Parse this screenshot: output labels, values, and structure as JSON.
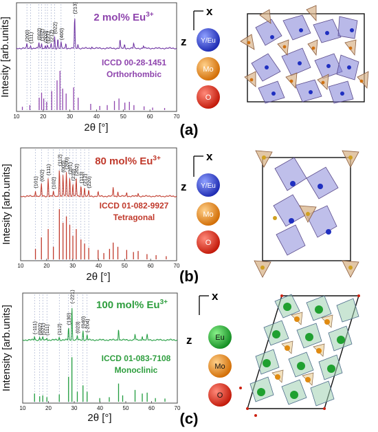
{
  "panels": [
    {
      "letter": "(a)",
      "conc_text": "2 mol% Eu",
      "conc_sup": "3+",
      "icdd": "ICCD 00-28-1451",
      "system": "Orthorhombic",
      "ion1": "Y/Eu",
      "ion2": "Mo",
      "ion3": "O",
      "axis_x": "x",
      "axis_z": "z"
    },
    {
      "letter": "(b)",
      "conc_text": "80 mol% Eu",
      "conc_sup": "3+",
      "icdd": "ICCD 01-082-9927",
      "system": "Tetragonal",
      "ion1": "Y/Eu",
      "ion2": "Mo",
      "ion3": "O",
      "axis_x": "x",
      "axis_z": "z"
    },
    {
      "letter": "(c)",
      "conc_text": "100 mol% Eu",
      "conc_sup": "3+",
      "icdd": "ICCD 01-083-7108",
      "system": "Monoclinic",
      "ion1": "Eu",
      "ion2": "Mo",
      "ion3": "O",
      "axis_x": "x",
      "axis_z": "z"
    }
  ],
  "colors": {
    "a": "#6b2fa0",
    "b": "#c0392b",
    "c": "#1e9b3c",
    "a_label": "#8e44ad",
    "b_label": "#c0392b",
    "c_label": "#2e9e3e",
    "ion_yeu": "#2435c8",
    "ion_eu": "#1e9b2e",
    "ion_mo": "#e07b10",
    "ion_o": "#d82010"
  },
  "chart_data": [
    {
      "type": "line",
      "xlabel": "2θ [°]",
      "ylabel": "Intesity [arb.units]",
      "xlim": [
        10,
        70
      ],
      "xticks": [
        10,
        20,
        30,
        40,
        50,
        60,
        70
      ],
      "pattern_peaks": [
        {
          "x": 13.9,
          "h": 0.1
        },
        {
          "x": 15.3,
          "h": 0.06
        },
        {
          "x": 18.4,
          "h": 0.14
        },
        {
          "x": 19.4,
          "h": 0.12
        },
        {
          "x": 20.8,
          "h": 0.08
        },
        {
          "x": 21.6,
          "h": 0.06
        },
        {
          "x": 23.0,
          "h": 0.1
        },
        {
          "x": 24.3,
          "h": 0.28
        },
        {
          "x": 25.5,
          "h": 0.22
        },
        {
          "x": 26.7,
          "h": 0.14
        },
        {
          "x": 28.5,
          "h": 0.12
        },
        {
          "x": 31.8,
          "h": 0.75
        },
        {
          "x": 33.0,
          "h": 0.1
        },
        {
          "x": 38.2,
          "h": 0.05
        },
        {
          "x": 48.8,
          "h": 0.2
        },
        {
          "x": 50.5,
          "h": 0.08
        },
        {
          "x": 53.9,
          "h": 0.12
        },
        {
          "x": 57.6,
          "h": 0.06
        }
      ],
      "reference_peaks": [
        {
          "x": 12.2,
          "h": 0.08
        },
        {
          "x": 15.0,
          "h": 0.12
        },
        {
          "x": 18.5,
          "h": 0.3
        },
        {
          "x": 19.4,
          "h": 0.42
        },
        {
          "x": 20.2,
          "h": 0.28
        },
        {
          "x": 21.3,
          "h": 0.2
        },
        {
          "x": 23.2,
          "h": 0.46
        },
        {
          "x": 25.2,
          "h": 0.72
        },
        {
          "x": 26.3,
          "h": 0.95
        },
        {
          "x": 27.3,
          "h": 0.52
        },
        {
          "x": 28.6,
          "h": 0.4
        },
        {
          "x": 31.4,
          "h": 0.55
        },
        {
          "x": 33.1,
          "h": 0.3
        },
        {
          "x": 37.8,
          "h": 0.15
        },
        {
          "x": 41.2,
          "h": 0.1
        },
        {
          "x": 44.0,
          "h": 0.12
        },
        {
          "x": 46.7,
          "h": 0.22
        },
        {
          "x": 48.4,
          "h": 0.28
        },
        {
          "x": 50.6,
          "h": 0.18
        },
        {
          "x": 52.3,
          "h": 0.2
        },
        {
          "x": 54.0,
          "h": 0.12
        },
        {
          "x": 57.8,
          "h": 0.09
        },
        {
          "x": 61.0,
          "h": 0.06
        },
        {
          "x": 65.5,
          "h": 0.05
        }
      ],
      "hkl_labels": [
        {
          "x": 13.9,
          "label": "(200)"
        },
        {
          "x": 15.3,
          "label": "(111)"
        },
        {
          "x": 18.4,
          "label": "(002)"
        },
        {
          "x": 19.4,
          "label": "(102)"
        },
        {
          "x": 20.8,
          "label": "(202)"
        },
        {
          "x": 21.6,
          "label": "(121)"
        },
        {
          "x": 23.0,
          "label": "(212)"
        },
        {
          "x": 24.3,
          "label": "(022)"
        },
        {
          "x": 26.7,
          "label": "(400)"
        },
        {
          "x": 31.8,
          "label": "(213)"
        }
      ]
    },
    {
      "type": "line",
      "xlabel": "2θ [°]",
      "ylabel": "Intesity [arb.units]",
      "xlim": [
        10,
        70
      ],
      "xticks": [
        10,
        20,
        30,
        40,
        50,
        60,
        70
      ],
      "pattern_peaks": [
        {
          "x": 15.7,
          "h": 0.14
        },
        {
          "x": 18.0,
          "h": 0.3
        },
        {
          "x": 20.6,
          "h": 0.45
        },
        {
          "x": 22.6,
          "h": 0.12
        },
        {
          "x": 24.9,
          "h": 0.68
        },
        {
          "x": 26.3,
          "h": 0.52
        },
        {
          "x": 27.6,
          "h": 0.6
        },
        {
          "x": 28.9,
          "h": 0.48
        },
        {
          "x": 30.1,
          "h": 0.32
        },
        {
          "x": 31.4,
          "h": 0.44
        },
        {
          "x": 33.2,
          "h": 0.26
        },
        {
          "x": 34.6,
          "h": 0.2
        },
        {
          "x": 36.2,
          "h": 0.14
        },
        {
          "x": 39.8,
          "h": 0.1
        },
        {
          "x": 45.6,
          "h": 0.22
        },
        {
          "x": 47.4,
          "h": 0.12
        },
        {
          "x": 50.8,
          "h": 0.1
        },
        {
          "x": 55.2,
          "h": 0.08
        }
      ],
      "reference_peaks": [
        {
          "x": 15.7,
          "h": 0.2
        },
        {
          "x": 18.0,
          "h": 0.42
        },
        {
          "x": 20.6,
          "h": 0.58
        },
        {
          "x": 22.6,
          "h": 0.24
        },
        {
          "x": 24.9,
          "h": 0.96
        },
        {
          "x": 26.3,
          "h": 0.7
        },
        {
          "x": 27.6,
          "h": 0.82
        },
        {
          "x": 28.9,
          "h": 0.66
        },
        {
          "x": 30.1,
          "h": 0.45
        },
        {
          "x": 31.4,
          "h": 0.58
        },
        {
          "x": 33.2,
          "h": 0.38
        },
        {
          "x": 34.6,
          "h": 0.3
        },
        {
          "x": 36.2,
          "h": 0.22
        },
        {
          "x": 39.8,
          "h": 0.18
        },
        {
          "x": 42.0,
          "h": 0.12
        },
        {
          "x": 44.2,
          "h": 0.2
        },
        {
          "x": 45.6,
          "h": 0.32
        },
        {
          "x": 47.4,
          "h": 0.24
        },
        {
          "x": 50.8,
          "h": 0.18
        },
        {
          "x": 53.4,
          "h": 0.14
        },
        {
          "x": 55.2,
          "h": 0.16
        },
        {
          "x": 58.6,
          "h": 0.1
        },
        {
          "x": 62.1,
          "h": 0.08
        },
        {
          "x": 66.0,
          "h": 0.06
        }
      ],
      "hkl_labels": [
        {
          "x": 15.7,
          "label": "(101)"
        },
        {
          "x": 18.0,
          "label": "(002)"
        },
        {
          "x": 20.6,
          "label": "(111)"
        },
        {
          "x": 22.6,
          "label": "(102)"
        },
        {
          "x": 24.9,
          "label": "(112)"
        },
        {
          "x": 26.3,
          "label": "(003)"
        },
        {
          "x": 27.6,
          "label": "(200)"
        },
        {
          "x": 28.9,
          "label": "(201)"
        },
        {
          "x": 30.1,
          "label": "(210)"
        },
        {
          "x": 31.4,
          "label": "(202)"
        },
        {
          "x": 33.2,
          "label": "(113)"
        },
        {
          "x": 34.6,
          "label": "(212)"
        },
        {
          "x": 36.2,
          "label": "(220)"
        }
      ]
    },
    {
      "type": "line",
      "xlabel": "2θ [°]",
      "ylabel": "Intensity [arb.units]",
      "xlim": [
        10,
        70
      ],
      "xticks": [
        10,
        20,
        30,
        40,
        50,
        60,
        70
      ],
      "pattern_peaks": [
        {
          "x": 14.6,
          "h": 0.08
        },
        {
          "x": 16.6,
          "h": 0.06
        },
        {
          "x": 17.8,
          "h": 0.06
        },
        {
          "x": 19.4,
          "h": 0.05
        },
        {
          "x": 24.2,
          "h": 0.06
        },
        {
          "x": 27.8,
          "h": 0.3
        },
        {
          "x": 29.1,
          "h": 0.8
        },
        {
          "x": 31.2,
          "h": 0.1
        },
        {
          "x": 33.4,
          "h": 0.22
        },
        {
          "x": 35.0,
          "h": 0.12
        },
        {
          "x": 47.2,
          "h": 0.28
        },
        {
          "x": 53.6,
          "h": 0.14
        },
        {
          "x": 56.4,
          "h": 0.1
        },
        {
          "x": 58.3,
          "h": 0.12
        }
      ],
      "reference_peaks": [
        {
          "x": 14.6,
          "h": 0.18
        },
        {
          "x": 16.6,
          "h": 0.12
        },
        {
          "x": 17.8,
          "h": 0.14
        },
        {
          "x": 19.4,
          "h": 0.1
        },
        {
          "x": 24.2,
          "h": 0.16
        },
        {
          "x": 27.8,
          "h": 0.55
        },
        {
          "x": 29.1,
          "h": 0.98
        },
        {
          "x": 31.2,
          "h": 0.22
        },
        {
          "x": 33.4,
          "h": 0.36
        },
        {
          "x": 35.0,
          "h": 0.22
        },
        {
          "x": 39.9,
          "h": 0.08
        },
        {
          "x": 43.6,
          "h": 0.1
        },
        {
          "x": 47.2,
          "h": 0.4
        },
        {
          "x": 48.8,
          "h": 0.14
        },
        {
          "x": 53.6,
          "h": 0.26
        },
        {
          "x": 56.4,
          "h": 0.18
        },
        {
          "x": 58.3,
          "h": 0.2
        },
        {
          "x": 61.5,
          "h": 0.08
        },
        {
          "x": 65.2,
          "h": 0.07
        }
      ],
      "hkl_labels": [
        {
          "x": 14.6,
          "label": "(-111)"
        },
        {
          "x": 16.6,
          "label": "(002)"
        },
        {
          "x": 17.8,
          "label": "(021)"
        },
        {
          "x": 19.4,
          "label": "(111)"
        },
        {
          "x": 24.2,
          "label": "(112)"
        },
        {
          "x": 27.8,
          "label": "(130)"
        },
        {
          "x": 29.1,
          "label": "(-221)"
        },
        {
          "x": 31.2,
          "label": "(023)"
        },
        {
          "x": 33.4,
          "label": "(040)"
        },
        {
          "x": 35.0,
          "label": "(-204)"
        }
      ]
    }
  ]
}
